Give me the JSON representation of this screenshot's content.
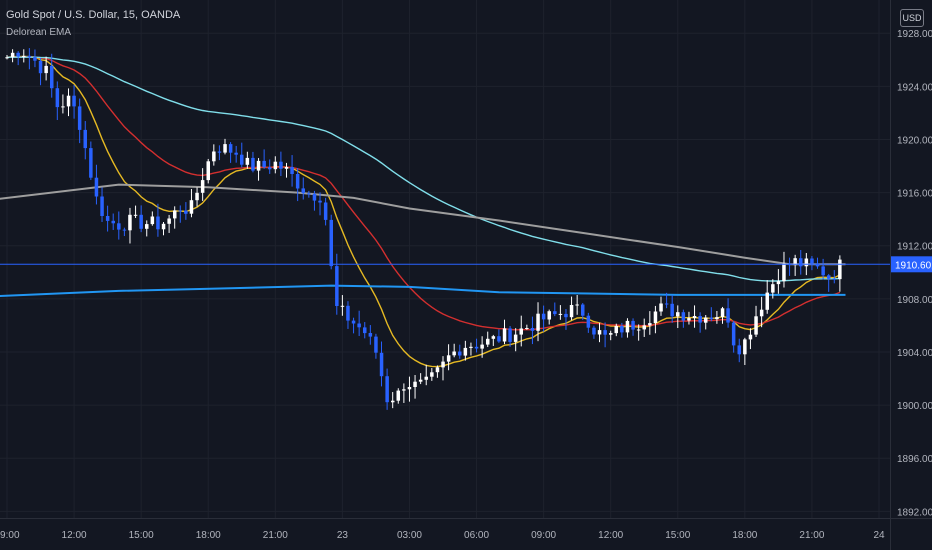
{
  "header": {
    "symbol": "Gold Spot / U.S. Dollar, 15, OANDA",
    "indicator": "Delorean EMA",
    "currency": "USD"
  },
  "colors": {
    "background": "#131722",
    "grid": "#1e222d",
    "bull": "#ffffff",
    "bear": "#2962ff",
    "ema_fast": "#e5b923",
    "ema_mid": "#d32f2f",
    "ema_slow": "#80deea",
    "ema_long": "#9e9e9e",
    "ema_longest": "#2196f3",
    "price_line": "#2962ff"
  },
  "chart_data": {
    "type": "candlestick",
    "symbol": "Gold Spot / U.S. Dollar",
    "interval": "15",
    "exchange": "OANDA",
    "ylim": [
      1891.5,
      1930.5
    ],
    "y_ticks": [
      "1892.000",
      "1896.000",
      "1900.000",
      "1904.000",
      "1908.000",
      "1912.000",
      "1916.000",
      "1920.000",
      "1924.000",
      "1928.000"
    ],
    "x_ticks": [
      {
        "label": "09:00",
        "hour": 0
      },
      {
        "label": "12:00",
        "hour": 3
      },
      {
        "label": "15:00",
        "hour": 6
      },
      {
        "label": "18:00",
        "hour": 9
      },
      {
        "label": "21:00",
        "hour": 12
      },
      {
        "label": "23",
        "hour": 15
      },
      {
        "label": "03:00",
        "hour": 18
      },
      {
        "label": "06:00",
        "hour": 21
      },
      {
        "label": "09:00",
        "hour": 24
      },
      {
        "label": "12:00",
        "hour": 27
      },
      {
        "label": "15:00",
        "hour": 30
      },
      {
        "label": "18:00",
        "hour": 33
      },
      {
        "label": "21:00",
        "hour": 36
      },
      {
        "label": "24",
        "hour": 39
      }
    ],
    "last_price": 1910.601,
    "last_price_label": "1910.601",
    "close_path": [
      [
        0.0,
        1926.2
      ],
      [
        0.6,
        1926.8
      ],
      [
        1.2,
        1926.0
      ],
      [
        1.8,
        1925.0
      ],
      [
        2.2,
        1922.5
      ],
      [
        2.8,
        1923.0
      ],
      [
        3.2,
        1921.6
      ],
      [
        3.6,
        1918.6
      ],
      [
        4.0,
        1915.5
      ],
      [
        4.5,
        1913.8
      ],
      [
        5.0,
        1913.6
      ],
      [
        5.5,
        1913.8
      ],
      [
        6.2,
        1913.7
      ],
      [
        6.8,
        1913.6
      ],
      [
        7.2,
        1913.9
      ],
      [
        7.8,
        1915.0
      ],
      [
        8.2,
        1914.6
      ],
      [
        8.8,
        1917.5
      ],
      [
        9.3,
        1919.5
      ],
      [
        9.8,
        1919.3
      ],
      [
        10.3,
        1919.0
      ],
      [
        10.8,
        1918.0
      ],
      [
        11.4,
        1917.9
      ],
      [
        12.0,
        1918.2
      ],
      [
        12.6,
        1917.5
      ],
      [
        13.4,
        1916.0
      ],
      [
        14.0,
        1915.8
      ],
      [
        14.4,
        1913.0
      ],
      [
        14.6,
        1907.5
      ],
      [
        15.3,
        1906.5
      ],
      [
        16.0,
        1905.5
      ],
      [
        16.5,
        1904.0
      ],
      [
        17.0,
        1900.5
      ],
      [
        17.5,
        1900.8
      ],
      [
        17.8,
        1901.8
      ],
      [
        18.3,
        1901.4
      ],
      [
        18.8,
        1901.6
      ],
      [
        19.3,
        1902.5
      ],
      [
        19.8,
        1903.7
      ],
      [
        20.4,
        1904.5
      ],
      [
        21.0,
        1904.6
      ],
      [
        21.6,
        1904.8
      ],
      [
        22.2,
        1905.2
      ],
      [
        22.8,
        1905.5
      ],
      [
        23.4,
        1906.0
      ],
      [
        24.0,
        1906.5
      ],
      [
        24.6,
        1906.8
      ],
      [
        25.2,
        1907.2
      ],
      [
        25.8,
        1907.0
      ],
      [
        26.2,
        1905.8
      ],
      [
        26.8,
        1905.0
      ],
      [
        27.5,
        1905.8
      ],
      [
        28.2,
        1906.2
      ],
      [
        28.8,
        1906.8
      ],
      [
        29.3,
        1907.3
      ],
      [
        30.0,
        1907.0
      ],
      [
        30.8,
        1906.7
      ],
      [
        31.5,
        1906.8
      ],
      [
        32.2,
        1907.0
      ],
      [
        32.6,
        1904.2
      ],
      [
        33.0,
        1904.8
      ],
      [
        33.5,
        1906.8
      ],
      [
        34.0,
        1908.5
      ],
      [
        34.6,
        1910.2
      ],
      [
        35.2,
        1910.8
      ],
      [
        35.8,
        1910.5
      ],
      [
        36.4,
        1910.2
      ],
      [
        36.8,
        1909.6
      ],
      [
        37.3,
        1910.6
      ]
    ],
    "series": [
      {
        "color": "#e5b923",
        "span": 3
      },
      {
        "color": "#d32f2f",
        "span": 8
      },
      {
        "color": "#80deea",
        "span": 28
      },
      {
        "color": "#9e9e9e",
        "points": [
          [
            -0.5,
            1915.5
          ],
          [
            5.0,
            1916.6
          ],
          [
            9.0,
            1916.4
          ],
          [
            13.0,
            1916.0
          ],
          [
            15.5,
            1915.6
          ],
          [
            18.0,
            1914.8
          ],
          [
            22.0,
            1913.9
          ],
          [
            26.0,
            1912.9
          ],
          [
            30.0,
            1911.9
          ],
          [
            33.0,
            1911.1
          ],
          [
            35.0,
            1910.6
          ],
          [
            37.5,
            1910.6
          ]
        ]
      },
      {
        "color": "#2196f3",
        "points": [
          [
            -0.5,
            1908.2
          ],
          [
            5.0,
            1908.6
          ],
          [
            10.0,
            1908.8
          ],
          [
            14.5,
            1909.0
          ],
          [
            18.0,
            1908.9
          ],
          [
            22.0,
            1908.5
          ],
          [
            26.0,
            1908.4
          ],
          [
            30.0,
            1908.3
          ],
          [
            34.0,
            1908.3
          ],
          [
            37.5,
            1908.3
          ]
        ]
      }
    ]
  }
}
